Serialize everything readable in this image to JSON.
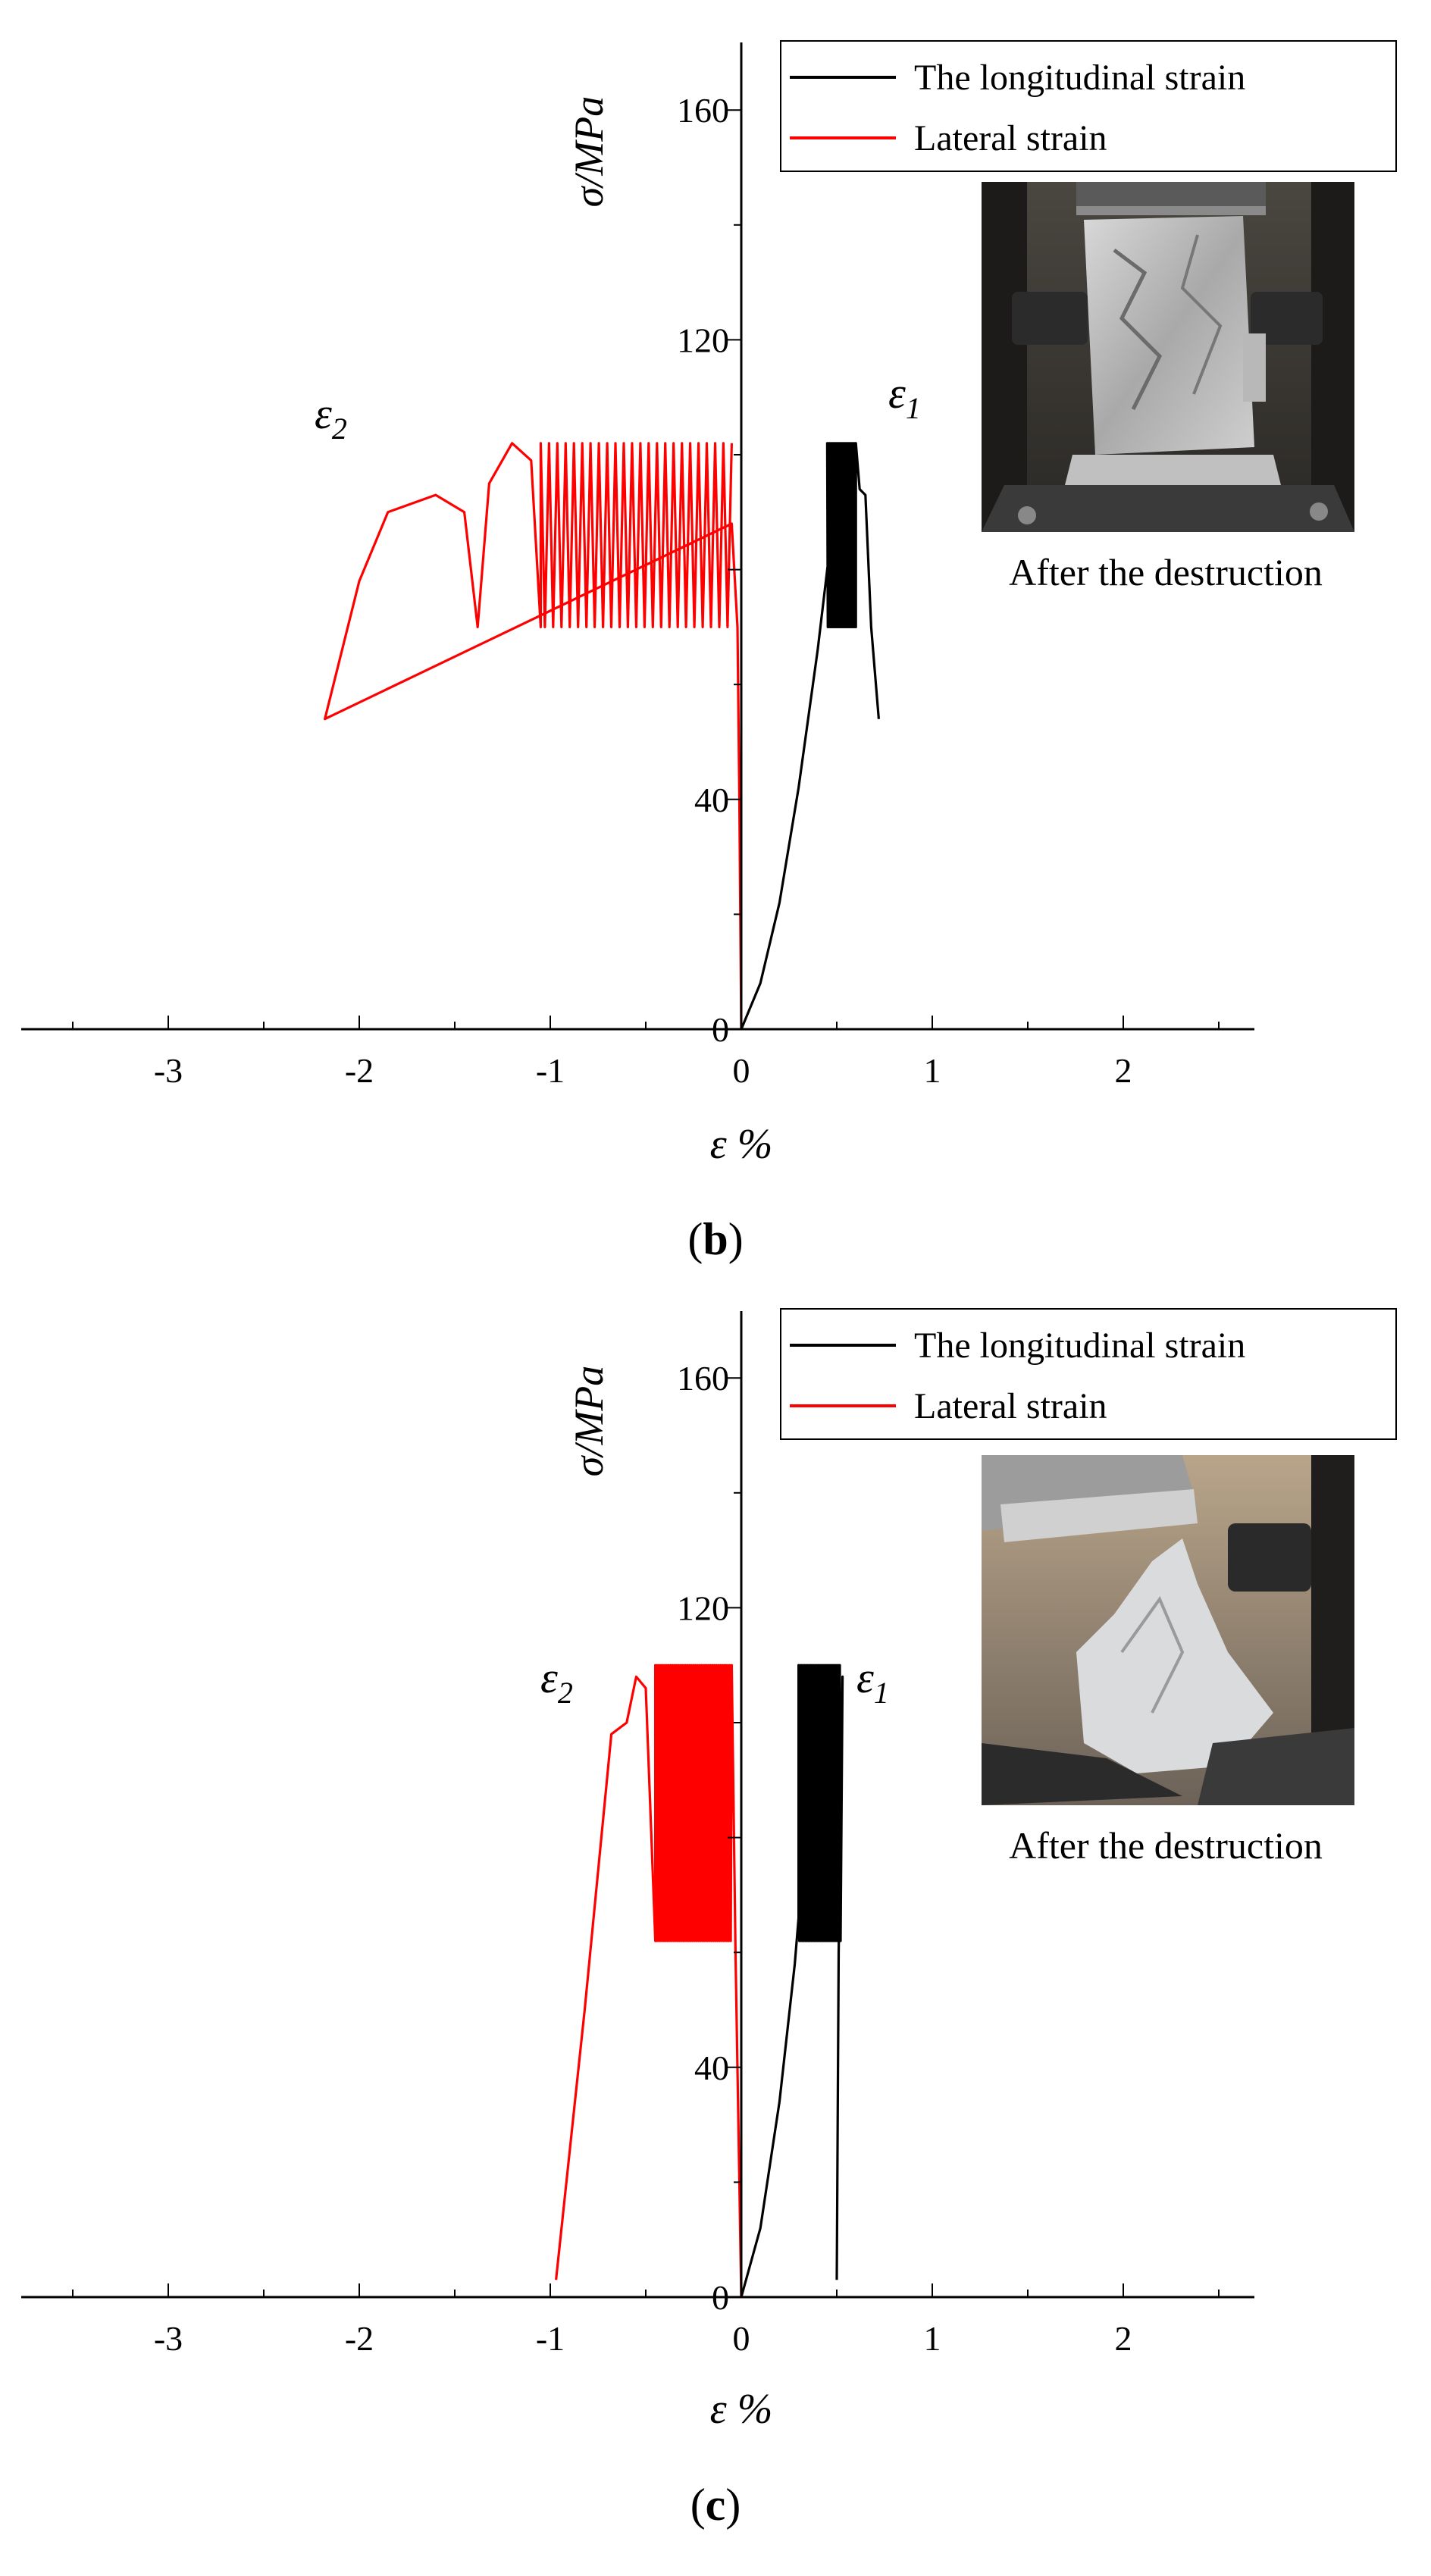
{
  "chart_data": [
    {
      "type": "line",
      "panel_label": "(b)",
      "panel_letter": "b",
      "xlabel": "ε %",
      "ylabel": "σ/MPa",
      "xlim": [
        -3.5,
        2.5
      ],
      "ylim": [
        0,
        160
      ],
      "xticks": [
        -3,
        -2,
        -1,
        0,
        1,
        2
      ],
      "yticks": [
        0,
        40,
        120,
        160
      ],
      "grid": false,
      "legend_position": "top-right",
      "legend": [
        "The longitudinal strain",
        "Lateral strain"
      ],
      "annotations": [
        "ε1",
        "ε2"
      ],
      "inset_caption": "After the destruction",
      "series": [
        {
          "name": "The longitudinal strain",
          "color": "#000000",
          "values": [
            [
              0,
              0
            ],
            [
              0.1,
              8
            ],
            [
              0.2,
              22
            ],
            [
              0.3,
              42
            ],
            [
              0.4,
              66
            ],
            [
              0.45,
              80
            ],
            [
              0.48,
              88
            ]
          ],
          "cyclic": {
            "x_start": 0.45,
            "x_end": 0.6,
            "y_low": 70,
            "y_high": 102,
            "cycles": 45
          },
          "tail": [
            [
              0.6,
              102
            ],
            [
              0.62,
              94
            ],
            [
              0.65,
              93
            ],
            [
              0.68,
              70
            ],
            [
              0.72,
              54
            ]
          ]
        },
        {
          "name": "Lateral strain",
          "color": "#ff0000",
          "values": [
            [
              0,
              0
            ],
            [
              -0.01,
              40
            ],
            [
              -0.02,
              70
            ],
            [
              -0.05,
              88
            ],
            [
              -2.18,
              54
            ],
            [
              -2.0,
              78
            ],
            [
              -1.85,
              90
            ],
            [
              -1.6,
              93
            ],
            [
              -1.45,
              90
            ],
            [
              -1.38,
              70
            ],
            [
              -1.32,
              95
            ],
            [
              -1.2,
              102
            ],
            [
              -1.1,
              99
            ],
            [
              -1.05,
              70
            ]
          ],
          "cyclic": {
            "x_start": -1.05,
            "x_end": -0.05,
            "y_low": 70,
            "y_high": 102,
            "cycles": 46
          }
        }
      ]
    },
    {
      "type": "line",
      "panel_label": "(c)",
      "panel_letter": "c",
      "xlabel": "ε %",
      "ylabel": "σ/MPa",
      "xlim": [
        -3.5,
        2.5
      ],
      "ylim": [
        0,
        160
      ],
      "xticks": [
        -3,
        -2,
        -1,
        0,
        1,
        2
      ],
      "yticks": [
        0,
        40,
        120,
        160
      ],
      "grid": false,
      "legend_position": "top-right",
      "legend": [
        "The longitudinal strain",
        "Lateral strain"
      ],
      "annotations": [
        "ε1",
        "ε2"
      ],
      "inset_caption": "After the destruction",
      "series": [
        {
          "name": "The longitudinal strain",
          "color": "#000000",
          "values": [
            [
              0,
              0
            ],
            [
              0.1,
              12
            ],
            [
              0.2,
              34
            ],
            [
              0.28,
              58
            ],
            [
              0.3,
              66
            ]
          ],
          "cyclic": {
            "x_start": 0.3,
            "x_end": 0.52,
            "y_low": 62,
            "y_high": 110,
            "cycles": 55
          },
          "tail": [
            [
              0.53,
              108
            ],
            [
              0.51,
              60
            ],
            [
              0.5,
              3
            ]
          ]
        },
        {
          "name": "Lateral strain",
          "color": "#ff0000",
          "values": [
            [
              -0.97,
              3
            ],
            [
              -0.82,
              50
            ],
            [
              -0.68,
              98
            ],
            [
              -0.6,
              100
            ],
            [
              -0.55,
              108
            ],
            [
              -0.5,
              106
            ],
            [
              -0.45,
              62
            ]
          ],
          "cyclic": {
            "x_start": -0.45,
            "x_end": -0.05,
            "y_low": 62,
            "y_high": 110,
            "cycles": 80
          },
          "tail": [
            [
              -0.05,
              110
            ],
            [
              -0.03,
              60
            ],
            [
              -0.01,
              20
            ],
            [
              0,
              0
            ]
          ]
        }
      ]
    }
  ]
}
